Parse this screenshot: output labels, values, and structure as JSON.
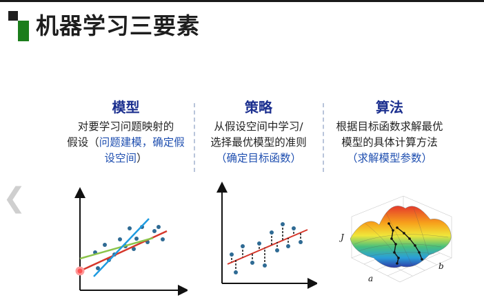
{
  "slide": {
    "title": "机器学习三要素",
    "columns": [
      {
        "heading": "模型",
        "desc_plain1": "对要学习问题映射的",
        "desc_plain2": "假设（",
        "desc_highlight": "问题建模，确定假设空间",
        "desc_end": "）"
      },
      {
        "heading": "策略",
        "desc_plain1": "从假设空间中学习/",
        "desc_plain2": "选择最优模型的准则",
        "desc_highlight": "（确定目标函数）"
      },
      {
        "heading": "算法",
        "desc_plain1": "根据目标函数求解最优",
        "desc_plain2": "模型的具体计算方法",
        "desc_highlight": "（求解模型参数）"
      }
    ],
    "surface_labels": {
      "j": "J",
      "a": "a",
      "b": "b"
    }
  },
  "colors": {
    "accent_blue": "#1b2f8f",
    "highlight_blue": "#1f4fb0",
    "logo_green": "#1b7d1b",
    "dot_blue": "#2f6b94",
    "line_red": "#d6372b",
    "line_green": "#8bc34a",
    "line_lightblue": "#1e9be0"
  },
  "icons": {
    "prev": "chevron-left-icon"
  }
}
